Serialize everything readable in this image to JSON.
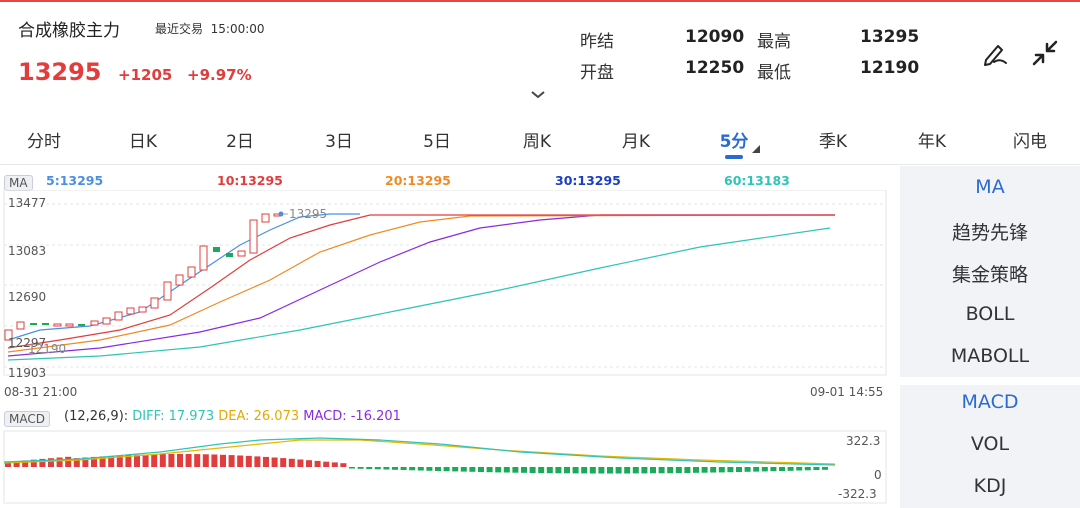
{
  "header": {
    "title": "合成橡胶主力",
    "trade_label": "最近交易",
    "trade_time": "15:00:00",
    "price": "13295",
    "change": "+1205",
    "change_pct": "+9.97%"
  },
  "stats": {
    "prev_settle_label": "昨结",
    "prev_settle": "12090",
    "high_label": "最高",
    "high": "13295",
    "open_label": "开盘",
    "open": "12250",
    "low_label": "最低",
    "low": "12190"
  },
  "icons": {
    "draw": "pen-draw-icon",
    "collapse": "collapse-arrows-icon",
    "expand": "chevron-down-icon"
  },
  "tabs": [
    "分时",
    "日K",
    "2日",
    "3日",
    "5日",
    "周K",
    "月K",
    "5分",
    "季K",
    "年K",
    "闪电"
  ],
  "active_tab": "5分",
  "ma_legend": {
    "badge": "MA",
    "items": [
      {
        "text": "5:13295",
        "color": "#4a90e2"
      },
      {
        "text": "10:13295",
        "color": "#e23c3c"
      },
      {
        "text": "20:13295",
        "color": "#f08a24"
      },
      {
        "text": "30:13295",
        "color": "#1a3fbf"
      },
      {
        "text": "60:13183",
        "color": "#2ec4b6"
      }
    ]
  },
  "price_axis": [
    "13477",
    "13083",
    "12690",
    "12297",
    "11903"
  ],
  "low_marker": "12190",
  "high_marker": "13295",
  "time_axis": {
    "start": "08-31 21:00",
    "end": "09-01 14:55"
  },
  "macd_legend": {
    "badge": "MACD",
    "params": "(12,26,9):",
    "diff": "DIFF: 17.973",
    "dea": "DEA: 26.073",
    "macd": "MACD: -16.201"
  },
  "macd_axis": [
    "322.3",
    "0",
    "-322.3"
  ],
  "sidebar": {
    "group1": [
      "MA",
      "趋势先锋",
      "集金策略",
      "BOLL",
      "MABOLL"
    ],
    "group2": [
      "MACD",
      "VOL",
      "KDJ"
    ],
    "selected": [
      "MA",
      "MACD"
    ]
  },
  "colors": {
    "up": "#e23c3c",
    "down": "#1aab5a",
    "accent": "#2a6bd1",
    "diff": "#2ec4b6",
    "dea": "#e6b800",
    "ma30": "#8a2be2"
  }
}
